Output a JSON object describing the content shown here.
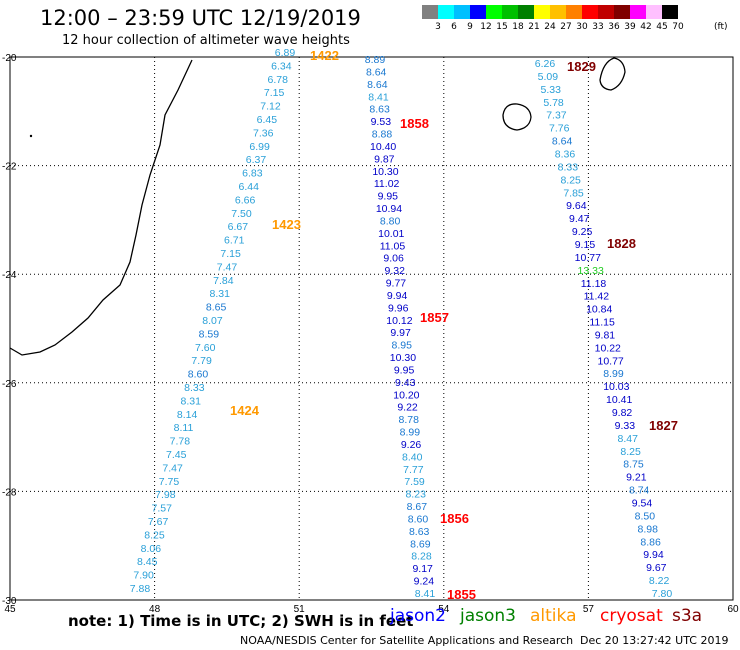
{
  "header": {
    "title": "12:00 – 23:59 UTC 12/19/2019",
    "subtitle": "12 hour collection of altimeter wave heights"
  },
  "colorbar": {
    "labels": [
      "3",
      "6",
      "9",
      "12",
      "15",
      "18",
      "21",
      "24",
      "27",
      "30",
      "33",
      "36",
      "39",
      "42",
      "45",
      "70"
    ],
    "unit": "(ft)",
    "colors": [
      "#808080",
      "#00ffff",
      "#00c0ff",
      "#0000ff",
      "#00ff00",
      "#00c000",
      "#008000",
      "#ffff00",
      "#ffc000",
      "#ff8000",
      "#ff0000",
      "#c00000",
      "#800000",
      "#ff00ff",
      "#ffc0ff",
      "#000000"
    ]
  },
  "map": {
    "lat_labels": [
      "-20",
      "-22",
      "-24",
      "-26",
      "-28",
      "-30"
    ],
    "lon_labels": [
      "45",
      "48",
      "51",
      "54",
      "57",
      "60"
    ],
    "lat_range": [
      -30,
      -20
    ],
    "lon_range": [
      45,
      60
    ]
  },
  "tracks": [
    {
      "name": "track-west",
      "color_default": "#2aa0d8",
      "values": [
        "6.89",
        "6.34",
        "6.78",
        "7.15",
        "7.12",
        "6.45",
        "7.36",
        "6.99",
        "6.37",
        "6.83",
        "6.44",
        "6.66",
        "7.50",
        "6.67",
        "6.71",
        "7.15",
        "7.47",
        "7.84",
        "8.31",
        "8.65",
        "8.07",
        "8.59",
        "7.60",
        "7.79",
        "8.60",
        "8.33",
        "8.31",
        "8.14",
        "8.11",
        "7.78",
        "7.45",
        "7.47",
        "7.75",
        "7.98",
        "7.57",
        "7.67",
        "8.25",
        "8.06",
        "8.45",
        "7.90",
        "7.88"
      ]
    },
    {
      "name": "track-middle",
      "values": [
        "8.89",
        "8.64",
        "8.64",
        "8.41",
        "8.63",
        "9.53",
        "8.88",
        "10.40",
        "9.87",
        "10.30",
        "11.02",
        "9.95",
        "10.94",
        "8.80",
        "10.01",
        "11.05",
        "9.06",
        "9.32",
        "9.77",
        "9.94",
        "9.96",
        "10.12",
        "9.97",
        "8.95",
        "10.30",
        "9.95",
        "9.43",
        "10.20",
        "9.22",
        "8.78",
        "8.99",
        "9.26",
        "8.40",
        "7.77",
        "7.59",
        "8.23",
        "8.67",
        "8.60",
        "8.63",
        "8.69",
        "8.28",
        "9.17",
        "9.24",
        "8.41"
      ]
    },
    {
      "name": "track-east",
      "values": [
        "6.26",
        "5.09",
        "5.33",
        "5.78",
        "7.37",
        "7.76",
        "8.64",
        "8.36",
        "8.33",
        "8.25",
        "7.85",
        "9.64",
        "9.47",
        "9.25",
        "9.15",
        "10.77",
        "13.33",
        "11.18",
        "11.42",
        "10.84",
        "11.15",
        "9.81",
        "10.22",
        "10.77",
        "8.99",
        "10.03",
        "10.41",
        "9.82",
        "9.33",
        "8.47",
        "8.25",
        "8.75",
        "9.21",
        "8.74",
        "9.54",
        "8.50",
        "8.98",
        "8.86",
        "9.94",
        "9.67",
        "8.22",
        "7.80"
      ]
    }
  ],
  "time_labels": [
    {
      "text": "1422",
      "color": "#ff9900"
    },
    {
      "text": "1423",
      "color": "#ff9900"
    },
    {
      "text": "1424",
      "color": "#ff9900"
    },
    {
      "text": "1858",
      "color": "#ff0000"
    },
    {
      "text": "1857",
      "color": "#ff0000"
    },
    {
      "text": "1856",
      "color": "#ff0000"
    },
    {
      "text": "1855",
      "color": "#ff0000"
    },
    {
      "text": "1829",
      "color": "#800000"
    },
    {
      "text": "1828",
      "color": "#800000"
    },
    {
      "text": "1827",
      "color": "#800000"
    }
  ],
  "legend": {
    "note": "note:  1) Time is in UTC;  2) SWH is in feet",
    "satellites": [
      {
        "label": "jason2",
        "color": "#0000ff"
      },
      {
        "label": "jason3",
        "color": "#008000"
      },
      {
        "label": "altika",
        "color": "#ff9900"
      },
      {
        "label": "cryosat",
        "color": "#ff0000"
      },
      {
        "label": "s3a",
        "color": "#800000"
      }
    ]
  },
  "footer": {
    "credit": "NOAA/NESDIS Center for Satellite Applications and Research",
    "timestamp": "Dec 20 13:27:42 UTC 2019"
  }
}
